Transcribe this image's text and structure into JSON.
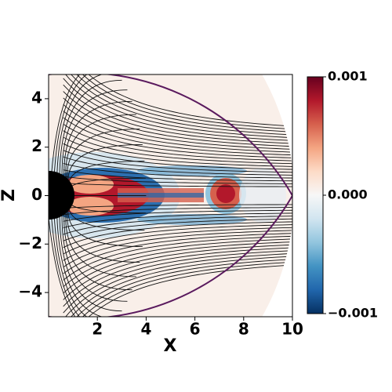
{
  "chart_data": {
    "type": "streamplot",
    "x_label": "X",
    "y_label": "Z",
    "xlim": [
      0,
      10
    ],
    "ylim": [
      -5,
      5
    ],
    "xticks": [
      2,
      4,
      6,
      8,
      10
    ],
    "yticks": [
      {
        "value": -4,
        "label": "−4"
      },
      {
        "value": -2,
        "label": "−2"
      },
      0,
      2,
      4
    ],
    "clim": [
      -0.001,
      0.001
    ],
    "cticks": [
      {
        "value": -0.001,
        "label": "−0.001"
      },
      {
        "value": 0,
        "label": "0.000"
      },
      {
        "value": 0.001,
        "label": "0.001"
      }
    ],
    "cmap_colors": [
      "#053061",
      "#2166ac",
      "#4393c3",
      "#92c5de",
      "#d1e5f0",
      "#f7f7f7",
      "#fddbc7",
      "#f4a582",
      "#d6604d",
      "#b2182b",
      "#67001f"
    ]
  }
}
